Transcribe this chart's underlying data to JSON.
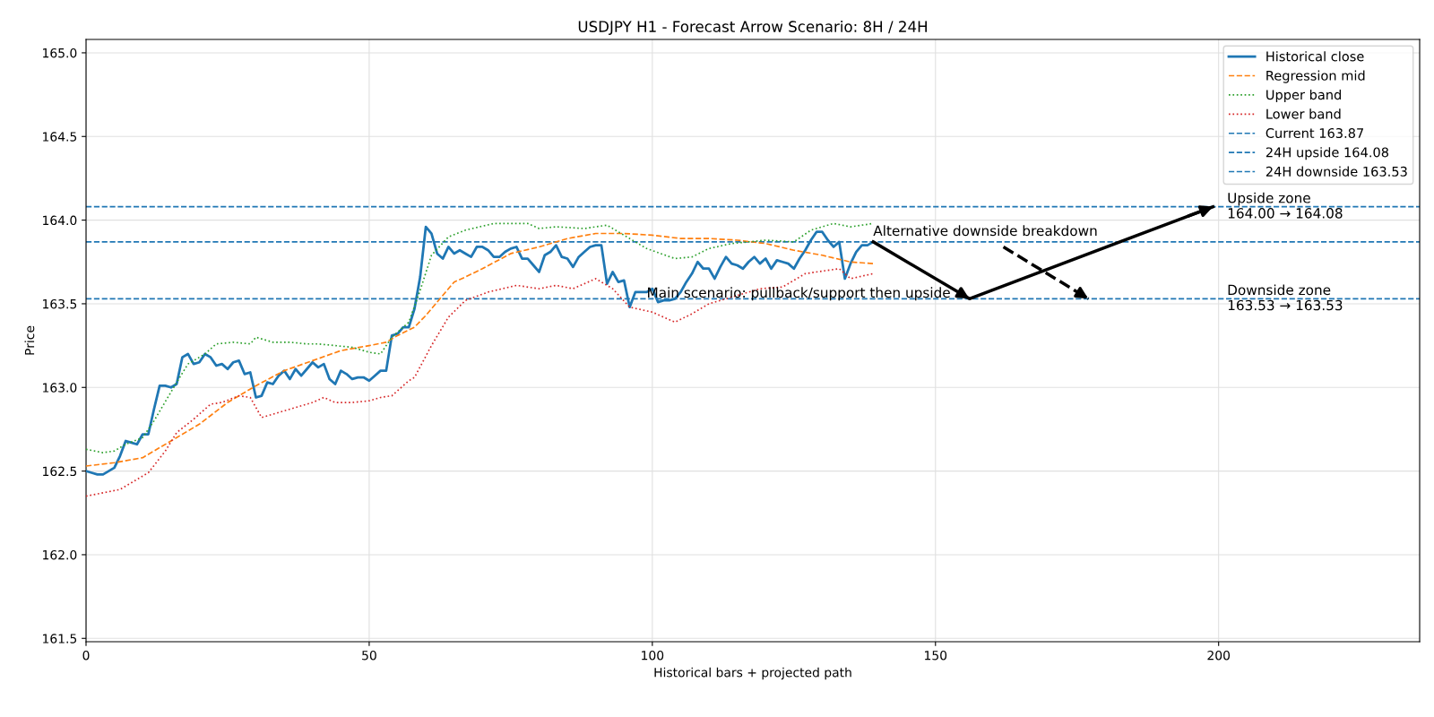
{
  "chart_data": {
    "type": "line",
    "title": "USDJPY H1 - Forecast Arrow Scenario: 8H / 24H",
    "xlabel": "Historical bars + projected path",
    "ylabel": "Price",
    "xlim": [
      0,
      235.5
    ],
    "xticks": [
      0,
      50,
      100,
      150,
      200
    ],
    "ylim": [
      161.48,
      165.08
    ],
    "yticks": [
      161.5,
      {
        "value": 162,
        "label": "162.0"
      },
      162.5,
      {
        "value": 163,
        "label": "163.0"
      },
      163.5,
      {
        "value": 164,
        "label": "164.0"
      },
      164.5,
      {
        "value": 165,
        "label": "165.0"
      }
    ],
    "grid": true,
    "legend": "top right",
    "marker": "none",
    "series": [
      {
        "name": "Historical close",
        "color": "#1f77b4",
        "line_style": "solid",
        "x": [
          0,
          1,
          2,
          3,
          4,
          5,
          6,
          7,
          8,
          9,
          10,
          11,
          12,
          13,
          14,
          15,
          16,
          17,
          18,
          19,
          20,
          21,
          22,
          23,
          24,
          25,
          26,
          27,
          28,
          29,
          30,
          31,
          32,
          33,
          34,
          35,
          36,
          37,
          38,
          39,
          40,
          41,
          42,
          43,
          44,
          45,
          46,
          47,
          48,
          49,
          50,
          51,
          52,
          53,
          54,
          55,
          56,
          57,
          58,
          59,
          60,
          61,
          62,
          63,
          64,
          65,
          66,
          67,
          68,
          69,
          70,
          71,
          72,
          73,
          74,
          75,
          76,
          77,
          78,
          79,
          80,
          81,
          82,
          83,
          84,
          85,
          86,
          87,
          88,
          89,
          90,
          91,
          92,
          93,
          94,
          95,
          96,
          97,
          98,
          99,
          100,
          101,
          102,
          103,
          104,
          105,
          106,
          107,
          108,
          109,
          110,
          111,
          112,
          113,
          114,
          115,
          116,
          117,
          118,
          119,
          120,
          121,
          122,
          123,
          124,
          125,
          126,
          127,
          128,
          129,
          130,
          131,
          132,
          133,
          134,
          135,
          136,
          137,
          138,
          139
        ],
        "values": [
          162.5,
          162.49,
          162.48,
          162.48,
          162.5,
          162.52,
          162.59,
          162.68,
          162.67,
          162.66,
          162.72,
          162.72,
          162.87,
          163.01,
          163.01,
          163.0,
          163.02,
          163.18,
          163.2,
          163.14,
          163.15,
          163.2,
          163.18,
          163.13,
          163.14,
          163.11,
          163.15,
          163.16,
          163.08,
          163.09,
          162.94,
          162.95,
          163.03,
          163.02,
          163.07,
          163.1,
          163.05,
          163.11,
          163.07,
          163.11,
          163.15,
          163.12,
          163.14,
          163.05,
          163.02,
          163.1,
          163.08,
          163.05,
          163.06,
          163.06,
          163.04,
          163.07,
          163.1,
          163.1,
          163.31,
          163.32,
          163.36,
          163.36,
          163.47,
          163.66,
          163.96,
          163.92,
          163.8,
          163.77,
          163.84,
          163.8,
          163.82,
          163.8,
          163.78,
          163.84,
          163.84,
          163.82,
          163.78,
          163.78,
          163.81,
          163.83,
          163.84,
          163.77,
          163.77,
          163.73,
          163.69,
          163.79,
          163.81,
          163.85,
          163.78,
          163.77,
          163.72,
          163.78,
          163.81,
          163.84,
          163.85,
          163.85,
          163.62,
          163.69,
          163.63,
          163.64,
          163.48,
          163.57,
          163.57,
          163.57,
          163.59,
          163.51,
          163.52,
          163.52,
          163.53,
          163.57,
          163.63,
          163.68,
          163.75,
          163.71,
          163.71,
          163.65,
          163.72,
          163.78,
          163.74,
          163.73,
          163.71,
          163.75,
          163.78,
          163.74,
          163.77,
          163.71,
          163.76,
          163.75,
          163.74,
          163.71,
          163.77,
          163.82,
          163.88,
          163.93,
          163.93,
          163.88,
          163.84,
          163.87,
          163.65,
          163.74,
          163.81,
          163.85,
          163.85,
          163.87
        ]
      },
      {
        "name": "Regression mid",
        "color": "#ff7f0e",
        "line_style": "dashed",
        "x": [
          0,
          5,
          10,
          15,
          20,
          25,
          30,
          35,
          40,
          45,
          50,
          53,
          55,
          58,
          60,
          65,
          67,
          70,
          75,
          80,
          85,
          90,
          93,
          95,
          100,
          105,
          110,
          115,
          120,
          125,
          130,
          135,
          139
        ],
        "values": [
          162.53,
          162.55,
          162.58,
          162.68,
          162.78,
          162.91,
          163.01,
          163.1,
          163.16,
          163.22,
          163.25,
          163.27,
          163.31,
          163.36,
          163.43,
          163.63,
          163.66,
          163.71,
          163.8,
          163.84,
          163.89,
          163.92,
          163.92,
          163.92,
          163.91,
          163.89,
          163.89,
          163.88,
          163.86,
          163.82,
          163.79,
          163.75,
          163.74
        ]
      },
      {
        "name": "Upper band",
        "color": "#2ca02c",
        "line_style": "dotted",
        "x": [
          0,
          3,
          5,
          7,
          10,
          12,
          16,
          18,
          21,
          23,
          26,
          29,
          30,
          33,
          36,
          39,
          41,
          44,
          47,
          50,
          52,
          54,
          57,
          59,
          61,
          64,
          67,
          72,
          78,
          80,
          83,
          88,
          92,
          95,
          99,
          104,
          107,
          110,
          114,
          120,
          125,
          128,
          132,
          135,
          139
        ],
        "values": [
          162.63,
          162.61,
          162.62,
          162.66,
          162.7,
          162.8,
          163.03,
          163.14,
          163.2,
          163.26,
          163.27,
          163.26,
          163.3,
          163.27,
          163.27,
          163.26,
          163.26,
          163.25,
          163.24,
          163.21,
          163.2,
          163.3,
          163.39,
          163.58,
          163.79,
          163.9,
          163.94,
          163.98,
          163.98,
          163.95,
          163.96,
          163.95,
          163.97,
          163.91,
          163.83,
          163.77,
          163.78,
          163.83,
          163.86,
          163.88,
          163.87,
          163.94,
          163.98,
          163.96,
          163.98
        ]
      },
      {
        "name": "Lower band",
        "color": "#d62728",
        "line_style": "dotted",
        "x": [
          0,
          3,
          6,
          11,
          14,
          16,
          19,
          22,
          24,
          27,
          29,
          31,
          34,
          37,
          40,
          42,
          44,
          47,
          50,
          52,
          54,
          57,
          58,
          61,
          64,
          67,
          71,
          76,
          80,
          83,
          86,
          90,
          93,
          96,
          100,
          104,
          107,
          110,
          115,
          119,
          123,
          127,
          133,
          135,
          139
        ],
        "values": [
          162.35,
          162.37,
          162.39,
          162.49,
          162.62,
          162.73,
          162.81,
          162.9,
          162.91,
          162.95,
          162.94,
          162.82,
          162.85,
          162.88,
          162.91,
          162.94,
          162.91,
          162.91,
          162.92,
          162.94,
          162.95,
          163.04,
          163.06,
          163.25,
          163.42,
          163.52,
          163.57,
          163.61,
          163.59,
          163.61,
          163.59,
          163.65,
          163.59,
          163.48,
          163.45,
          163.39,
          163.44,
          163.5,
          163.55,
          163.59,
          163.6,
          163.68,
          163.71,
          163.65,
          163.68
        ]
      },
      {
        "color": "#000000",
        "line_style": "solid",
        "x": [
          139,
          156,
          199
        ],
        "values": [
          163.87,
          163.53,
          164.08
        ]
      },
      {
        "color": "#000000",
        "line_style": "dashed",
        "x": [
          162,
          177
        ],
        "values": [
          163.84,
          163.53
        ]
      }
    ],
    "ref_lines": [
      {
        "axis": "y",
        "value": 163.87,
        "label": "Current 163.87",
        "color": "#1f77b4",
        "line_style": "dashed"
      },
      {
        "axis": "y",
        "value": 164.08,
        "label": "24H upside 164.08",
        "color": "#1f77b4",
        "line_style": "dashed"
      },
      {
        "axis": "y",
        "value": 163.53,
        "label": "24H downside 163.53",
        "color": "#1f77b4",
        "line_style": "dashed"
      }
    ],
    "annotations": [
      {
        "text": "Main scenario: pullback/support then upside",
        "x": 99,
        "y": 163.56
      },
      {
        "text": "Alternative downside breakdown",
        "x": 139,
        "y": 163.89
      },
      {
        "text": "Upside zone\n164.00 → 164.08",
        "x": 201.5,
        "y": 164.08
      },
      {
        "text": "Downside zone\n163.53 → 163.53",
        "x": 201.5,
        "y": 163.53
      }
    ]
  }
}
